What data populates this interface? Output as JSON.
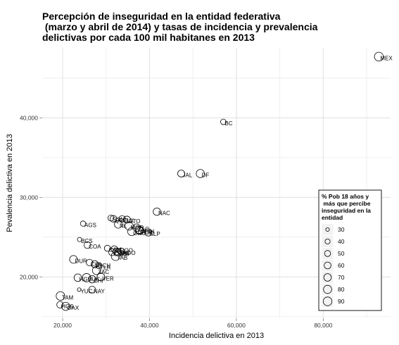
{
  "chart_data": {
    "type": "scatter",
    "title_lines": [
      "Percepción de inseguridad en la entidad federativa",
      " (marzo y abril de 2014) y tasas de incidencia y prevalencia",
      "delictivas por cada 100 mil habitanes en 2013"
    ],
    "xlabel": "Incidencia delictiva en 2013",
    "ylabel": "Pevalencia delictiva en 2013",
    "xlim": [
      15300,
      95500
    ],
    "ylim": [
      14800,
      48800
    ],
    "xticks": [
      20000,
      40000,
      60000,
      80000
    ],
    "xtick_labels": [
      "20,000",
      "40,000",
      "60,000",
      "80,000"
    ],
    "yticks": [
      20000,
      30000,
      40000
    ],
    "ytick_labels": [
      "20,000",
      "30,000",
      "40,000"
    ],
    "grid": true,
    "legend": {
      "position": "right",
      "title_lines": [
        "% Pob 18 años y",
        " más que percibe",
        "inseguridad en la",
        "entidad"
      ],
      "values": [
        30,
        40,
        50,
        60,
        70,
        80,
        90
      ],
      "labels": [
        "30",
        "40",
        "50",
        "60",
        "70",
        "80",
        "90"
      ]
    },
    "points": [
      {
        "label": "MEX",
        "x": 92800,
        "y": 47700,
        "size": 92
      },
      {
        "label": "BC",
        "x": 57000,
        "y": 39500,
        "size": 44
      },
      {
        "label": "JAL",
        "x": 47300,
        "y": 33000,
        "size": 62
      },
      {
        "label": "DF",
        "x": 51700,
        "y": 33000,
        "size": 80
      },
      {
        "label": "NAC",
        "x": 41700,
        "y": 28200,
        "size": 68
      },
      {
        "label": "AGS",
        "x": 24700,
        "y": 26700,
        "size": 42
      },
      {
        "label": "SON",
        "x": 31100,
        "y": 27400,
        "size": 48
      },
      {
        "label": "QRO",
        "x": 31700,
        "y": 27300,
        "size": 58
      },
      {
        "label": "TLX",
        "x": 33700,
        "y": 27300,
        "size": 55
      },
      {
        "label": "GTO",
        "x": 34800,
        "y": 27200,
        "size": 63
      },
      {
        "label": "NL",
        "x": 32800,
        "y": 26600,
        "size": 70
      },
      {
        "label": "MOR",
        "x": 35300,
        "y": 26400,
        "size": 80
      },
      {
        "label": "ZAC",
        "x": 37000,
        "y": 26200,
        "size": 68
      },
      {
        "label": "CHIH",
        "x": 37600,
        "y": 25900,
        "size": 74
      },
      {
        "label": "GRO",
        "x": 35900,
        "y": 25700,
        "size": 78
      },
      {
        "label": "PUE",
        "x": 37800,
        "y": 25800,
        "size": 66
      },
      {
        "label": "SLP",
        "x": 39700,
        "y": 25600,
        "size": 66
      },
      {
        "label": "BCS",
        "x": 23900,
        "y": 24700,
        "size": 34
      },
      {
        "label": "COA",
        "x": 25700,
        "y": 24000,
        "size": 58
      },
      {
        "label": "CAM",
        "x": 30300,
        "y": 23600,
        "size": 50
      },
      {
        "label": "QROO",
        "x": 31900,
        "y": 23500,
        "size": 56
      },
      {
        "label": "CHIS",
        "x": 31400,
        "y": 23100,
        "size": 60
      },
      {
        "label": "OAX",
        "x": 32400,
        "y": 23200,
        "size": 62
      },
      {
        "label": "SIN",
        "x": 32800,
        "y": 23100,
        "size": 66
      },
      {
        "label": "HGO",
        "x": 33500,
        "y": 23200,
        "size": 60
      },
      {
        "label": "TAB",
        "x": 32200,
        "y": 22600,
        "size": 88
      },
      {
        "label": "DUR",
        "x": 22500,
        "y": 22200,
        "size": 74
      },
      {
        "label": "COL",
        "x": 26200,
        "y": 21800,
        "size": 56
      },
      {
        "label": "MICH",
        "x": 27400,
        "y": 21600,
        "size": 64
      },
      {
        "label": "TLA",
        "x": 28300,
        "y": 21400,
        "size": 48
      },
      {
        "label": "ZAC",
        "x": 27800,
        "y": 20800,
        "size": 80
      },
      {
        "label": "VER",
        "x": 28800,
        "y": 20000,
        "size": 72
      },
      {
        "label": "HGO",
        "x": 23500,
        "y": 19900,
        "size": 70
      },
      {
        "label": "YUC",
        "x": 25500,
        "y": 19900,
        "size": 84
      },
      {
        "label": "CHI",
        "x": 26800,
        "y": 19700,
        "size": 68
      },
      {
        "label": "TAM",
        "x": 19500,
        "y": 17600,
        "size": 88
      },
      {
        "label": "YUC",
        "x": 23800,
        "y": 18400,
        "size": 30
      },
      {
        "label": "NAY",
        "x": 26800,
        "y": 18400,
        "size": 60
      },
      {
        "label": "HGS",
        "x": 19400,
        "y": 16500,
        "size": 56
      },
      {
        "label": "OAX",
        "x": 20700,
        "y": 16300,
        "size": 80
      }
    ]
  }
}
